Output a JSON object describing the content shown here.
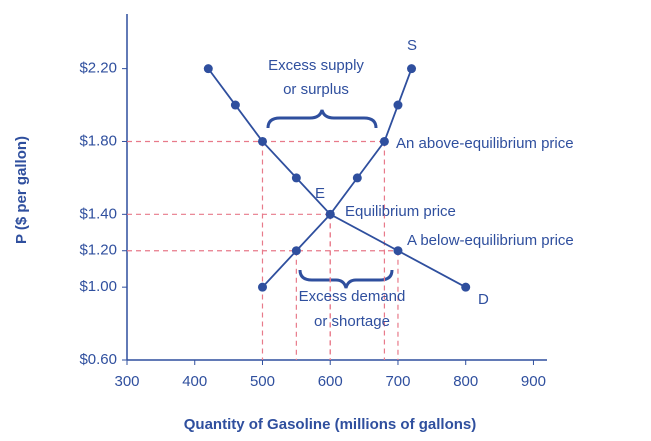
{
  "chart_data": {
    "type": "line",
    "x_label": "Quantity of Gasoline (millions of gallons)",
    "y_label": "P ($ per gallon)",
    "xlim": [
      300,
      920
    ],
    "ylim": [
      0.6,
      2.5
    ],
    "xticks": [
      300,
      400,
      500,
      600,
      700,
      800,
      900
    ],
    "yticks": [
      {
        "value": 0.6,
        "label": "$0.60"
      },
      {
        "value": 1.0,
        "label": "$1.00"
      },
      {
        "value": 1.2,
        "label": "$1.20"
      },
      {
        "value": 1.4,
        "label": "$1.40"
      },
      {
        "value": 1.8,
        "label": "$1.80"
      },
      {
        "value": 2.2,
        "label": "$2.20"
      }
    ],
    "dashed_guides_at": [
      1.8,
      1.4,
      1.2
    ],
    "guide_color": "#e87a8a",
    "series": [
      {
        "name": "D",
        "color": "#2f4f9e",
        "x": [
          420,
          460,
          500,
          550,
          600,
          700,
          800
        ],
        "values": [
          2.2,
          2.0,
          1.8,
          1.6,
          1.4,
          1.2,
          1.0
        ]
      },
      {
        "name": "S",
        "color": "#2f4f9e",
        "x": [
          500,
          550,
          600,
          640,
          680,
          700,
          720
        ],
        "values": [
          1.0,
          1.2,
          1.4,
          1.6,
          1.8,
          2.0,
          2.2
        ]
      }
    ],
    "annotations": [
      "Excess supply",
      "or surplus",
      "An above-equilibrium price",
      "E",
      "Equilibrium price",
      "A below-equilibrium price",
      "Excess demand",
      "or shortage"
    ]
  }
}
